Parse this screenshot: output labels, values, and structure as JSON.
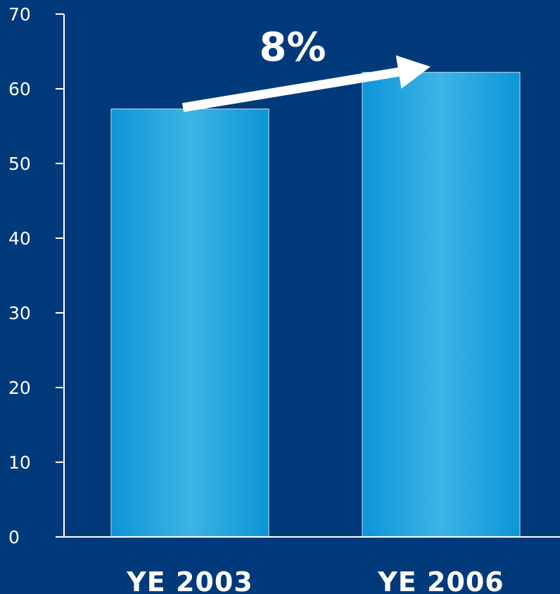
{
  "chart_data": {
    "type": "bar",
    "categories": [
      "YE 2003",
      "YE 2006"
    ],
    "values": [
      57.3,
      62.2
    ],
    "ylim": [
      0,
      70
    ],
    "yticks": [
      0,
      10,
      20,
      30,
      40,
      50,
      60,
      70
    ],
    "grid": false,
    "legend": "none",
    "annotation": {
      "text": "8%",
      "arrow_from": "YE 2003",
      "arrow_to": "YE 2006"
    },
    "colors": {
      "background": "#003a7a",
      "bar_edge": "#0d95d8",
      "bar_center": "#3cb4e4",
      "bar_outline": "#b9e3f5",
      "axis": "#ffffff",
      "text": "#ffffff"
    }
  }
}
